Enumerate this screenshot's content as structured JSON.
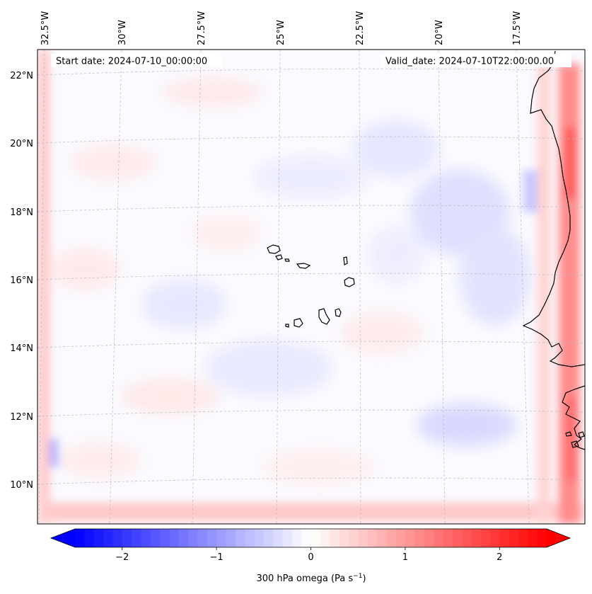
{
  "header": {
    "start_date": "Start date: 2024-07-10_00:00:00",
    "valid_date": "Valid_date: 2024-07-10T22:00:00.00"
  },
  "map": {
    "longitude_labels": [
      "32.5°W",
      "30°W",
      "27.5°W",
      "25°W",
      "22.5°W",
      "20°W",
      "17.5°W"
    ],
    "latitude_labels": [
      "22°N",
      "20°N",
      "18°N",
      "16°N",
      "14°N",
      "12°N",
      "10°N"
    ],
    "gridlines": true,
    "gridline_style": "dashed-gray",
    "coastline_color": "#000000"
  },
  "colorbar": {
    "label_prefix": "300 hPa omega (Pa s",
    "label_exponent": "−1",
    "label_suffix": ")",
    "tick_labels": [
      "−2",
      "−1",
      "0",
      "1",
      "2"
    ],
    "tick_values": [
      -2,
      -1,
      0,
      1,
      2
    ],
    "range": [
      -2.5,
      2.5
    ],
    "colormap": "bwr",
    "extend": "both",
    "color_low": "#0000ff",
    "color_mid": "#ffffff",
    "color_high": "#ff0000"
  }
}
